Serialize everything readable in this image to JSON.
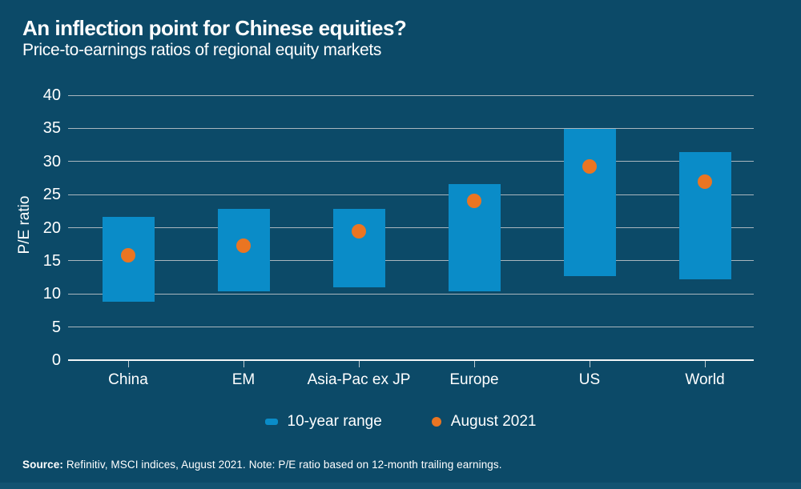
{
  "header": {
    "title": "An inflection point for Chinese equities?",
    "subtitle": "Price-to-earnings ratios of regional equity markets"
  },
  "chart_data": {
    "type": "bar",
    "subtype": "floating-range-bars-with-dot-markers",
    "title": "An inflection point for Chinese equities?",
    "subtitle": "Price-to-earnings ratios of regional equity markets",
    "categories": [
      "China",
      "EM",
      "Asia-Pac ex JP",
      "Europe",
      "US",
      "World"
    ],
    "series": [
      {
        "name": "10-year range",
        "type": "range-bar",
        "low": [
          8.8,
          10.4,
          11.0,
          10.4,
          12.7,
          12.2
        ],
        "high": [
          21.6,
          22.8,
          22.8,
          26.6,
          34.9,
          31.4
        ]
      },
      {
        "name": "August 2021",
        "type": "dot",
        "values": [
          15.8,
          17.3,
          19.5,
          24.1,
          29.2,
          27.0
        ]
      }
    ],
    "xlabel": "",
    "ylabel": "P/E ratio",
    "ylim": [
      0,
      40
    ],
    "yticks": [
      0,
      5,
      10,
      15,
      20,
      25,
      30,
      35,
      40
    ],
    "grid": true,
    "legend_position": "bottom"
  },
  "legend": {
    "items": [
      {
        "label": "10-year range",
        "swatch": "bar-swatch"
      },
      {
        "label": "August 2021",
        "swatch": "dot-swatch"
      }
    ]
  },
  "footer": {
    "source_label": "Source:",
    "source_text": " Refinitiv, MSCI indices, August 2021. Note: P/E ratio based on 12-month trailing earnings."
  },
  "colors": {
    "background": "#0c4a68",
    "bar": "#0a8cc8",
    "dot": "#ea7522",
    "gridline": "#a9b6be",
    "axis_line": "#f2f5f6",
    "text": "#ffffff",
    "bottom_strip": "#135371"
  }
}
